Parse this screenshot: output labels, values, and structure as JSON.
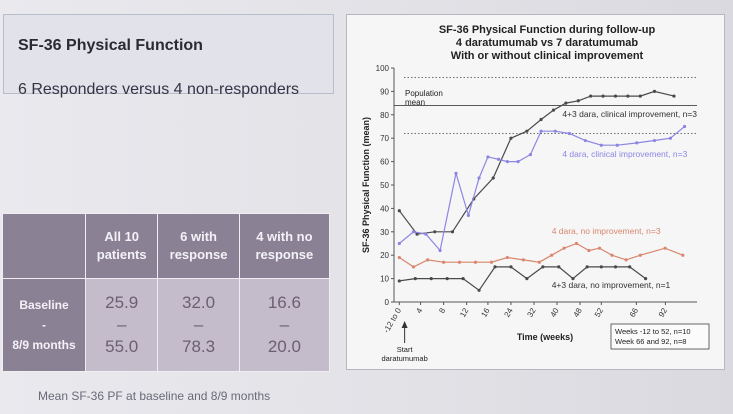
{
  "left_panel": {
    "title": "SF-36 Physical Function",
    "subtitle": "6 Responders versus 4 non-responders"
  },
  "table": {
    "headers": [
      "",
      "All 10 patients",
      "6 with response",
      "4  with no response"
    ],
    "row_label": [
      "Baseline",
      "-",
      "8/9 months"
    ],
    "rows": [
      {
        "col": "All 10 patients",
        "baseline": "25.9",
        "dash": "–",
        "month8_9": "55.0"
      },
      {
        "col": "6 with response",
        "baseline": "32.0",
        "dash": "–",
        "month8_9": "78.3"
      },
      {
        "col": "4  with no response",
        "baseline": "16.6",
        "dash": "–",
        "month8_9": "20.0"
      }
    ]
  },
  "caption": "Mean SF-36 PF at baseline and 8/9 months",
  "colors": {
    "dark": "#4a4a4a",
    "purple": "#8c86e2",
    "orange": "#d9866c",
    "reference": "#444444",
    "table_header": "#8a8195",
    "table_cell": "#c4bccb"
  },
  "chart_data": {
    "type": "line",
    "title_lines": [
      "SF-36 Physical Function during follow-up",
      "4 daratumumab vs 7 daratumumab",
      "With or without clinical improvement"
    ],
    "xlabel": "Time (weeks)",
    "ylabel": "SF-36 Physical Function (mean)",
    "x_tick_labels": [
      "-12 to 0",
      "4",
      "8",
      "12",
      "16",
      "24",
      "32",
      "40",
      "48",
      "52",
      "66",
      "92"
    ],
    "ylim": [
      0,
      100
    ],
    "y_ticks": [
      0,
      10,
      20,
      30,
      40,
      50,
      60,
      70,
      80,
      90,
      100
    ],
    "reference_lines": [
      {
        "label": "Population mean",
        "value": 84,
        "style": "solid"
      },
      {
        "value": 96,
        "style": "dotted"
      },
      {
        "value": 72,
        "style": "dotted"
      }
    ],
    "annotation_arrow": "Start daratumumab",
    "note_box": [
      "Weeks -12 to 52, n=10",
      "Week 66 and 92, n=8"
    ],
    "series": [
      {
        "name": "4+3 dara, clinical improvement, n=3",
        "color": "#4a4a4a",
        "x": [
          0,
          1,
          2,
          3,
          4.2,
          5.3,
          6.3,
          7.2,
          8.0,
          8.7,
          9.4,
          10.1,
          10.8,
          11.5,
          12.2,
          12.9,
          13.6,
          14.4,
          15.5
        ],
        "y": [
          39,
          29,
          30,
          30,
          44,
          53,
          70,
          73,
          78,
          82,
          85,
          86,
          88,
          88,
          88,
          88,
          88,
          90,
          88
        ]
      },
      {
        "name": "4 dara, clinical improvement, n=3",
        "color": "#8c86e2",
        "x": [
          0,
          0.8,
          1.5,
          2.3,
          3.2,
          3.9,
          4.5,
          5.0,
          5.6,
          6.1,
          6.7,
          7.4,
          8.0,
          8.8,
          9.6,
          10.5,
          11.4,
          12.3,
          13.4,
          14.4,
          15.3,
          16.1
        ],
        "y": [
          25,
          30,
          29,
          22,
          55,
          37,
          53,
          62,
          61,
          60,
          60,
          63,
          73,
          73,
          72,
          69,
          67,
          67,
          68,
          69,
          70,
          75
        ]
      },
      {
        "name": "4 dara, no improvement, n=3",
        "color": "#d9866c",
        "x": [
          0,
          0.8,
          1.6,
          2.5,
          3.4,
          4.3,
          5.2,
          6.1,
          7.0,
          7.9,
          8.6,
          9.3,
          10.0,
          10.7,
          11.3,
          12.0,
          12.8,
          13.6,
          15.0,
          16.0
        ],
        "y": [
          19,
          15,
          18,
          17,
          17,
          17,
          17,
          19,
          18,
          17,
          20,
          23,
          25,
          22,
          23,
          20,
          18,
          20,
          23,
          20
        ]
      },
      {
        "name": "4+3 dara, no improvement, n=1",
        "color": "#4a4a4a",
        "x": [
          0,
          0.9,
          1.8,
          2.7,
          3.6,
          4.5,
          5.4,
          6.3,
          7.2,
          8.1,
          9.0,
          9.8,
          10.6,
          11.4,
          12.2,
          13.0,
          13.9
        ],
        "y": [
          9,
          10,
          10,
          10,
          10,
          5,
          15,
          15,
          10,
          15,
          15,
          10,
          15,
          15,
          15,
          15,
          10
        ]
      }
    ],
    "series_label_positions": [
      {
        "x": 9.2,
        "y": 79
      },
      {
        "x": 9.2,
        "y": 62
      },
      {
        "x": 8.6,
        "y": 29
      },
      {
        "x": 8.6,
        "y": 6
      }
    ]
  }
}
